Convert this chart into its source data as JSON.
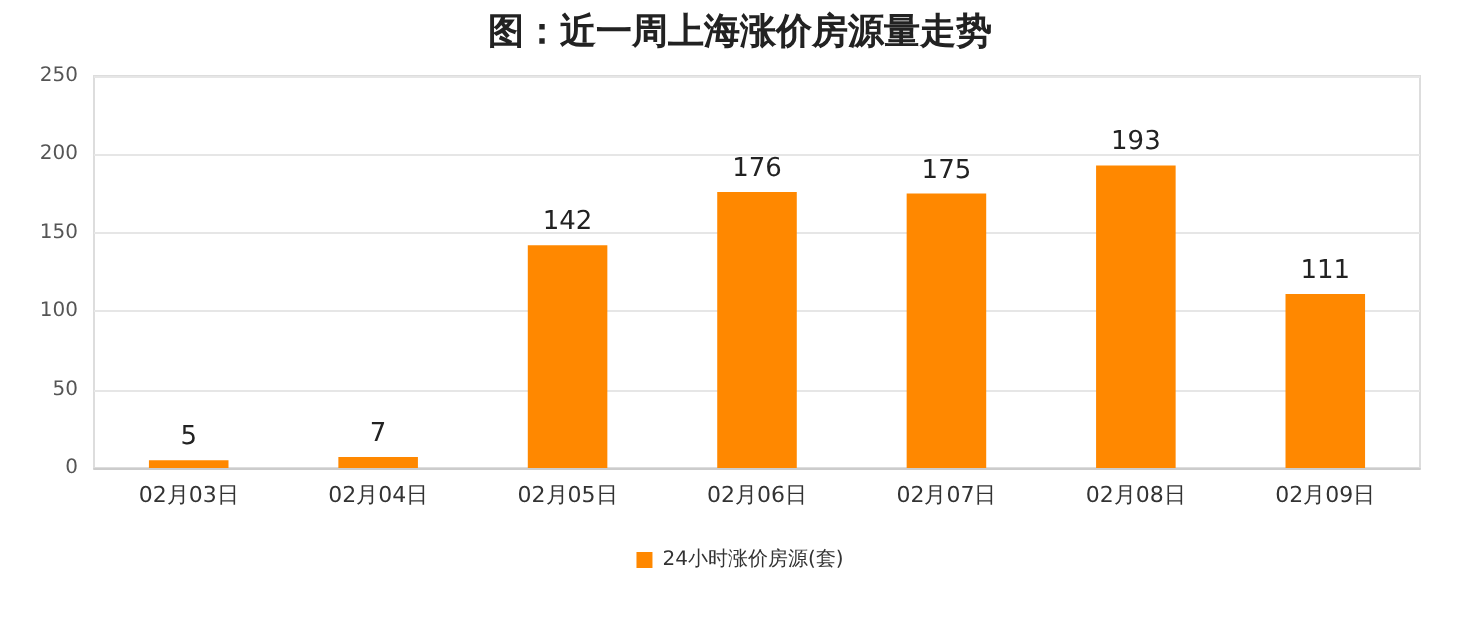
{
  "chart_data": {
    "type": "bar",
    "title": "图：近一周上海涨价房源量走势",
    "categories": [
      "02月03日",
      "02月04日",
      "02月05日",
      "02月06日",
      "02月07日",
      "02月08日",
      "02月09日"
    ],
    "series": [
      {
        "name": "24小时涨价房源(套)",
        "color": "#ff8800",
        "values": [
          5,
          7,
          142,
          176,
          175,
          193,
          111
        ]
      }
    ],
    "ylim": [
      0,
      250
    ],
    "yticks": [
      0,
      50,
      100,
      150,
      200,
      250
    ],
    "grid": "y",
    "legend": "bottom",
    "data_labels": true
  }
}
